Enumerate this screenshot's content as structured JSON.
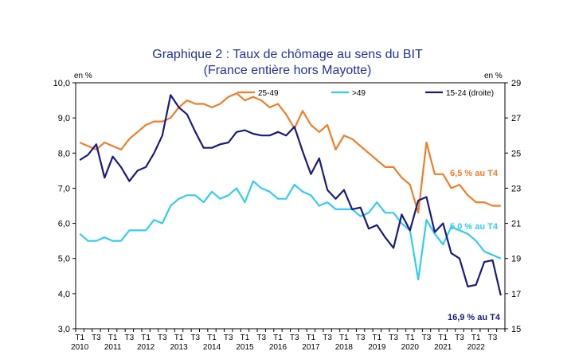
{
  "chart_data": {
    "type": "line",
    "title": "Graphique 2 : Taux de chômage au sens du BIT",
    "subtitle": "(France entière hors Mayotte)",
    "ylabel_left": "en %",
    "ylabel_right": "en %",
    "ylim_left": [
      3.0,
      10.0
    ],
    "ylim_right": [
      15,
      29
    ],
    "yticks_left": [
      "3,0",
      "4,0",
      "5,0",
      "6,0",
      "7,0",
      "8,0",
      "9,0",
      "10,0"
    ],
    "yticks_right": [
      "15",
      "17",
      "19",
      "21",
      "23",
      "25",
      "27",
      "29"
    ],
    "quarter_labels": [
      "T1",
      "T3"
    ],
    "years": [
      "2010",
      "2011",
      "2012",
      "2013",
      "2014",
      "2015",
      "2016",
      "2017",
      "2018",
      "2019",
      "2020",
      "2021",
      "2022"
    ],
    "x": [
      "2010T1",
      "2010T2",
      "2010T3",
      "2010T4",
      "2011T1",
      "2011T2",
      "2011T3",
      "2011T4",
      "2012T1",
      "2012T2",
      "2012T3",
      "2012T4",
      "2013T1",
      "2013T2",
      "2013T3",
      "2013T4",
      "2014T1",
      "2014T2",
      "2014T3",
      "2014T4",
      "2015T1",
      "2015T2",
      "2015T3",
      "2015T4",
      "2016T1",
      "2016T2",
      "2016T3",
      "2016T4",
      "2017T1",
      "2017T2",
      "2017T3",
      "2017T4",
      "2018T1",
      "2018T2",
      "2018T3",
      "2018T4",
      "2019T1",
      "2019T2",
      "2019T3",
      "2019T4",
      "2020T1",
      "2020T2",
      "2020T3",
      "2020T4",
      "2021T1",
      "2021T2",
      "2021T3",
      "2021T4",
      "2022T1",
      "2022T2",
      "2022T3",
      "2022T4"
    ],
    "series": [
      {
        "name": "25-49",
        "axis": "left",
        "color": "#f07d28",
        "values": [
          8.3,
          8.2,
          8.1,
          8.3,
          8.2,
          8.1,
          8.4,
          8.6,
          8.8,
          8.9,
          8.9,
          9.0,
          9.3,
          9.5,
          9.4,
          9.4,
          9.3,
          9.4,
          9.6,
          9.7,
          9.5,
          9.6,
          9.5,
          9.3,
          9.4,
          9.1,
          8.7,
          9.2,
          8.8,
          8.6,
          8.8,
          8.1,
          8.5,
          8.4,
          8.2,
          8.0,
          7.8,
          7.6,
          7.6,
          7.3,
          7.1,
          6.3,
          8.3,
          7.4,
          7.4,
          7.0,
          7.1,
          6.8,
          6.6,
          6.6,
          6.5,
          6.5
        ]
      },
      {
        "name": ">49",
        "axis": "left",
        "color": "#33ccf0",
        "values": [
          5.7,
          5.5,
          5.5,
          5.6,
          5.5,
          5.5,
          5.8,
          5.8,
          5.8,
          6.1,
          6.0,
          6.5,
          6.7,
          6.8,
          6.8,
          6.6,
          6.9,
          6.7,
          6.8,
          7.0,
          6.6,
          7.2,
          7.0,
          6.9,
          6.7,
          6.7,
          7.1,
          6.9,
          6.8,
          6.5,
          6.6,
          6.4,
          6.4,
          6.4,
          6.2,
          6.3,
          6.6,
          6.3,
          6.3,
          6.0,
          5.8,
          4.4,
          6.1,
          5.7,
          5.4,
          5.9,
          5.8,
          5.7,
          5.5,
          5.2,
          5.1,
          5.0
        ]
      },
      {
        "name": "15-24 (droite)",
        "axis": "right",
        "color": "#1a1a80",
        "values": [
          24.6,
          24.9,
          25.5,
          23.6,
          24.8,
          24.2,
          23.4,
          24.0,
          24.2,
          25.0,
          26.0,
          28.3,
          27.6,
          27.2,
          26.2,
          25.3,
          25.3,
          25.5,
          25.6,
          26.2,
          26.3,
          26.1,
          26.0,
          26.0,
          26.2,
          26.0,
          26.5,
          25.1,
          23.8,
          24.7,
          22.9,
          22.4,
          22.9,
          21.8,
          21.9,
          20.7,
          20.9,
          20.2,
          19.6,
          21.5,
          20.6,
          22.3,
          22.5,
          20.5,
          21.0,
          19.3,
          19.0,
          17.4,
          17.5,
          18.8,
          18.9,
          16.9
        ]
      }
    ],
    "annotations": [
      {
        "text": "6,5 % au T4",
        "color": "#f07d28"
      },
      {
        "text": "5,0 % au T4",
        "color": "#33ccf0"
      },
      {
        "text": "16,9 % au T4",
        "color": "#1a1a80"
      }
    ],
    "legend_placement": "top",
    "grid": false
  }
}
